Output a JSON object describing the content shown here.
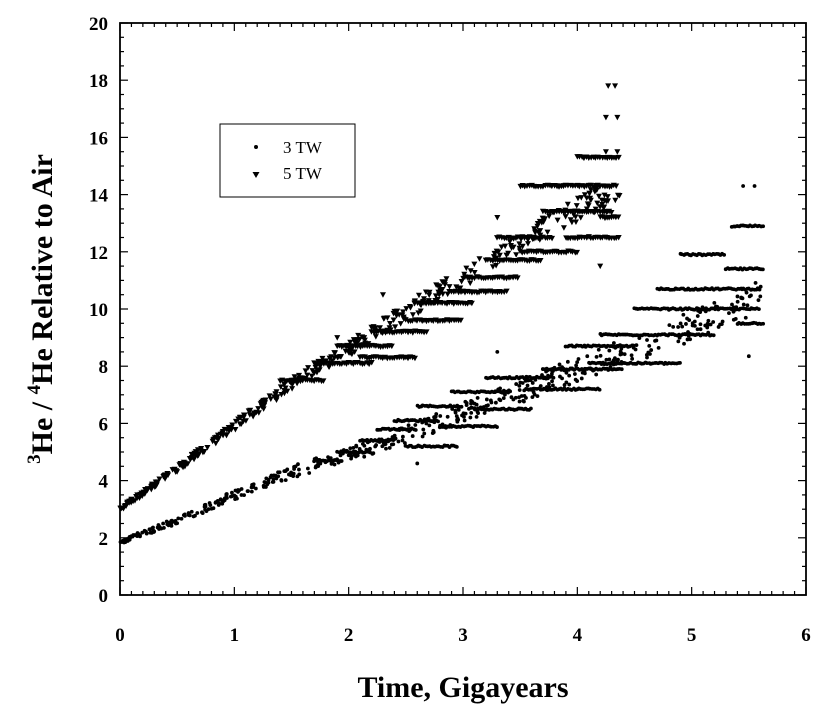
{
  "chart_data": {
    "type": "scatter",
    "xlabel": "Time, Gigayears",
    "ylabel": {
      "sup1": "3",
      "part1": "He / ",
      "sup2": "4",
      "part2": "He  Relative to Air"
    },
    "xlim": [
      0,
      6
    ],
    "ylim": [
      0,
      20
    ],
    "xticks": [
      0,
      1,
      2,
      3,
      4,
      5,
      6
    ],
    "yticks": [
      0,
      2,
      4,
      6,
      8,
      10,
      12,
      14,
      16,
      18,
      20
    ],
    "grid": false,
    "legend_position": "upper-left",
    "series": [
      {
        "name": "3 TW",
        "marker": "circle",
        "color": "#000000",
        "x_range": [
          0,
          5.63
        ],
        "trend": [
          [
            0,
            1.85
          ],
          [
            0.5,
            2.6
          ],
          [
            1.0,
            3.5
          ],
          [
            1.5,
            4.3
          ],
          [
            2.0,
            4.9
          ],
          [
            2.5,
            5.6
          ],
          [
            3.0,
            6.4
          ],
          [
            3.5,
            7.1
          ],
          [
            4.0,
            7.9
          ],
          [
            4.5,
            8.6
          ],
          [
            5.0,
            9.4
          ],
          [
            5.63,
            10.5
          ]
        ],
        "bands": [
          {
            "x": [
              1.7,
              1.95
            ],
            "y": 4.7
          },
          {
            "x": [
              1.9,
              2.2
            ],
            "y": 5.0
          },
          {
            "x": [
              2.1,
              2.4
            ],
            "y": 5.4
          },
          {
            "x": [
              2.25,
              2.6
            ],
            "y": 5.8
          },
          {
            "x": [
              2.4,
              2.8
            ],
            "y": 6.1
          },
          {
            "x": [
              2.5,
              2.95
            ],
            "y": 5.2
          },
          {
            "x": [
              2.6,
              3.0
            ],
            "y": 6.6
          },
          {
            "x": [
              2.8,
              3.3
            ],
            "y": 5.9
          },
          {
            "x": [
              2.9,
              3.4
            ],
            "y": 7.1
          },
          {
            "x": [
              3.1,
              3.6
            ],
            "y": 6.5
          },
          {
            "x": [
              3.2,
              3.8
            ],
            "y": 7.6
          },
          {
            "x": [
              3.6,
              4.2
            ],
            "y": 7.2
          },
          {
            "x": [
              3.7,
              4.4
            ],
            "y": 7.9
          },
          {
            "x": [
              3.9,
              4.5
            ],
            "y": 8.7
          },
          {
            "x": [
              4.1,
              4.9
            ],
            "y": 8.1
          },
          {
            "x": [
              4.2,
              5.2
            ],
            "y": 9.1
          },
          {
            "x": [
              4.5,
              5.6
            ],
            "y": 10.0
          },
          {
            "x": [
              4.7,
              5.6
            ],
            "y": 10.7
          },
          {
            "x": [
              4.9,
              5.3
            ],
            "y": 11.9
          },
          {
            "x": [
              5.3,
              5.63
            ],
            "y": 11.4
          },
          {
            "x": [
              5.35,
              5.63
            ],
            "y": 12.9
          },
          {
            "x": [
              5.4,
              5.63
            ],
            "y": 9.5
          }
        ],
        "outliers": [
          [
            5.45,
            14.3
          ],
          [
            5.55,
            14.3
          ],
          [
            5.5,
            8.35
          ],
          [
            3.3,
            8.5
          ],
          [
            2.6,
            4.6
          ]
        ]
      },
      {
        "name": "5 TW",
        "marker": "triangle-down",
        "color": "#000000",
        "x_range": [
          0,
          4.37
        ],
        "trend": [
          [
            0,
            3.0
          ],
          [
            0.5,
            4.4
          ],
          [
            1.0,
            5.9
          ],
          [
            1.5,
            7.4
          ],
          [
            2.0,
            8.6
          ],
          [
            2.5,
            9.9
          ],
          [
            3.0,
            11.1
          ],
          [
            3.5,
            12.3
          ],
          [
            4.0,
            13.5
          ],
          [
            4.37,
            14.3
          ]
        ],
        "bands": [
          {
            "x": [
              1.4,
              1.8
            ],
            "y": 7.5
          },
          {
            "x": [
              1.7,
              2.2
            ],
            "y": 8.1
          },
          {
            "x": [
              1.9,
              2.4
            ],
            "y": 8.7
          },
          {
            "x": [
              2.1,
              2.6
            ],
            "y": 8.3
          },
          {
            "x": [
              2.2,
              2.7
            ],
            "y": 9.2
          },
          {
            "x": [
              2.5,
              3.0
            ],
            "y": 9.6
          },
          {
            "x": [
              2.6,
              3.1
            ],
            "y": 10.2
          },
          {
            "x": [
              2.9,
              3.4
            ],
            "y": 10.6
          },
          {
            "x": [
              3.0,
              3.5
            ],
            "y": 11.1
          },
          {
            "x": [
              3.2,
              3.7
            ],
            "y": 11.7
          },
          {
            "x": [
              3.3,
              3.8
            ],
            "y": 12.5
          },
          {
            "x": [
              3.5,
              4.0
            ],
            "y": 12.0
          },
          {
            "x": [
              3.5,
              3.9
            ],
            "y": 14.3
          },
          {
            "x": [
              3.7,
              4.3
            ],
            "y": 13.4
          },
          {
            "x": [
              3.8,
              4.35
            ],
            "y": 14.3
          },
          {
            "x": [
              3.9,
              4.37
            ],
            "y": 12.5
          },
          {
            "x": [
              4.0,
              4.37
            ],
            "y": 15.3
          },
          {
            "x": [
              4.2,
              4.37
            ],
            "y": 13.2
          }
        ],
        "outliers": [
          [
            4.27,
            17.8
          ],
          [
            4.33,
            17.8
          ],
          [
            4.25,
            16.7
          ],
          [
            4.35,
            16.7
          ],
          [
            4.25,
            15.5
          ],
          [
            4.35,
            15.5
          ],
          [
            3.3,
            13.2
          ],
          [
            4.2,
            11.5
          ],
          [
            1.9,
            9.0
          ],
          [
            2.3,
            10.5
          ]
        ]
      }
    ]
  }
}
